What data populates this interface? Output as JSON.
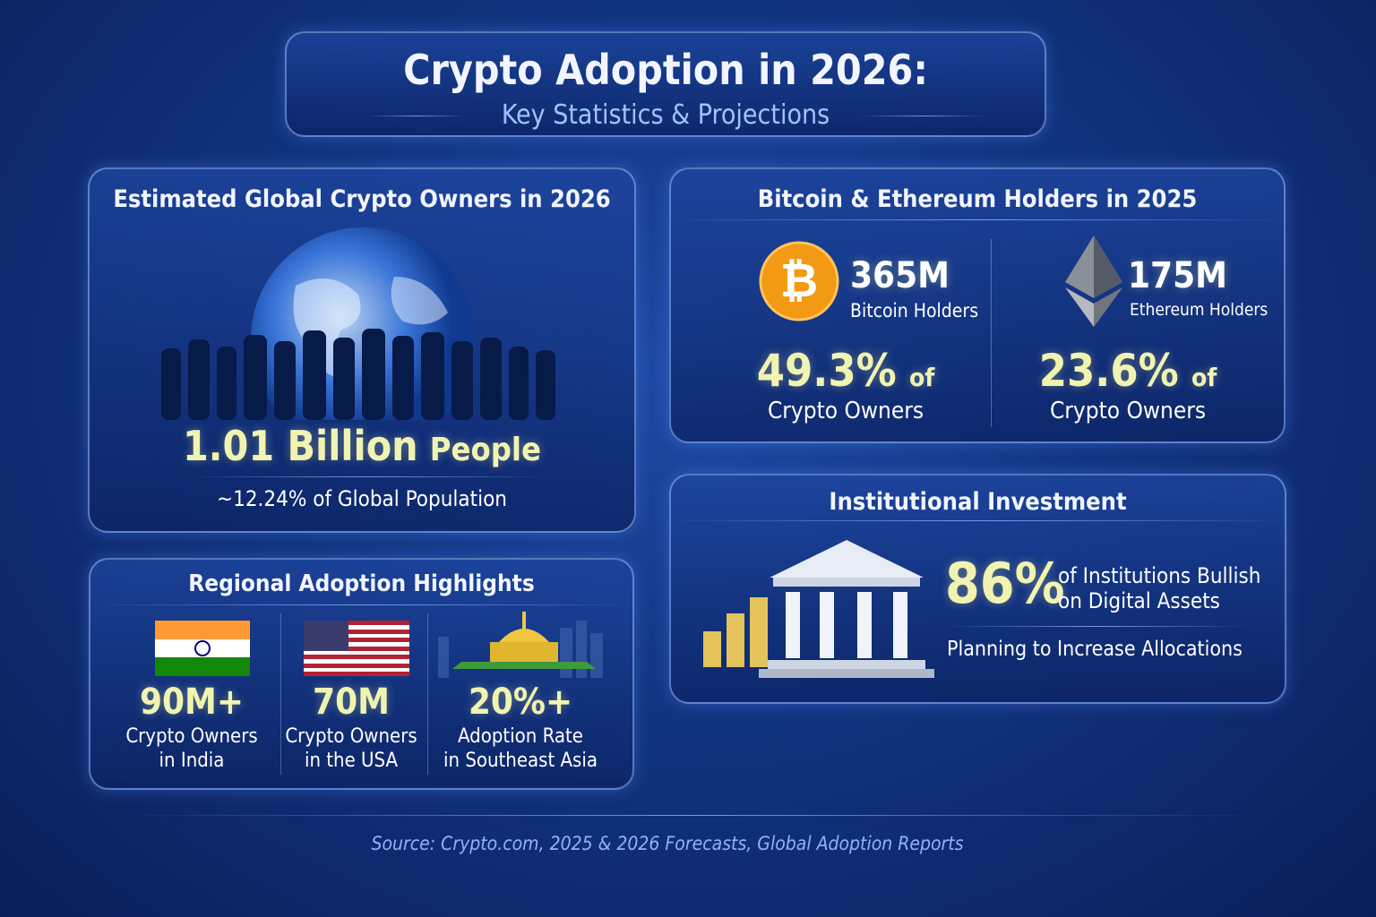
{
  "header": {
    "title": "Crypto Adoption in 2026:",
    "subtitle": "Key Statistics & Projections"
  },
  "global": {
    "heading": "Estimated Global Crypto Owners in 2026",
    "value": "1.01 Billion",
    "unit": "People",
    "note": "~12.24% of Global Population"
  },
  "holders": {
    "heading": "Bitcoin & Ethereum Holders in 2025",
    "items": [
      {
        "value": "365M",
        "label": "Bitcoin Holders",
        "share": "49.3%",
        "of": "of",
        "share_label": "Crypto Owners"
      },
      {
        "value": "175M",
        "label": "Ethereum Holders",
        "share": "23.6%",
        "of": "of",
        "share_label": "Crypto Owners"
      }
    ]
  },
  "regional": {
    "heading": "Regional Adoption Highlights",
    "items": [
      {
        "value": "90M+",
        "line1": "Crypto Owners",
        "line2": "in India"
      },
      {
        "value": "70M",
        "line1": "Crypto Owners",
        "line2": "in the USA"
      },
      {
        "value": "20%+",
        "line1": "Adoption Rate",
        "line2": "in Southeast Asia"
      }
    ]
  },
  "institutional": {
    "heading": "Institutional Investment",
    "value": "86%",
    "line1": "of Institutions Bullish",
    "line2": "on Digital Assets",
    "note": "Planning to Increase Allocations"
  },
  "source": "Source: Crypto.com, 2025 & 2026 Forecasts, Global Adoption Reports"
}
